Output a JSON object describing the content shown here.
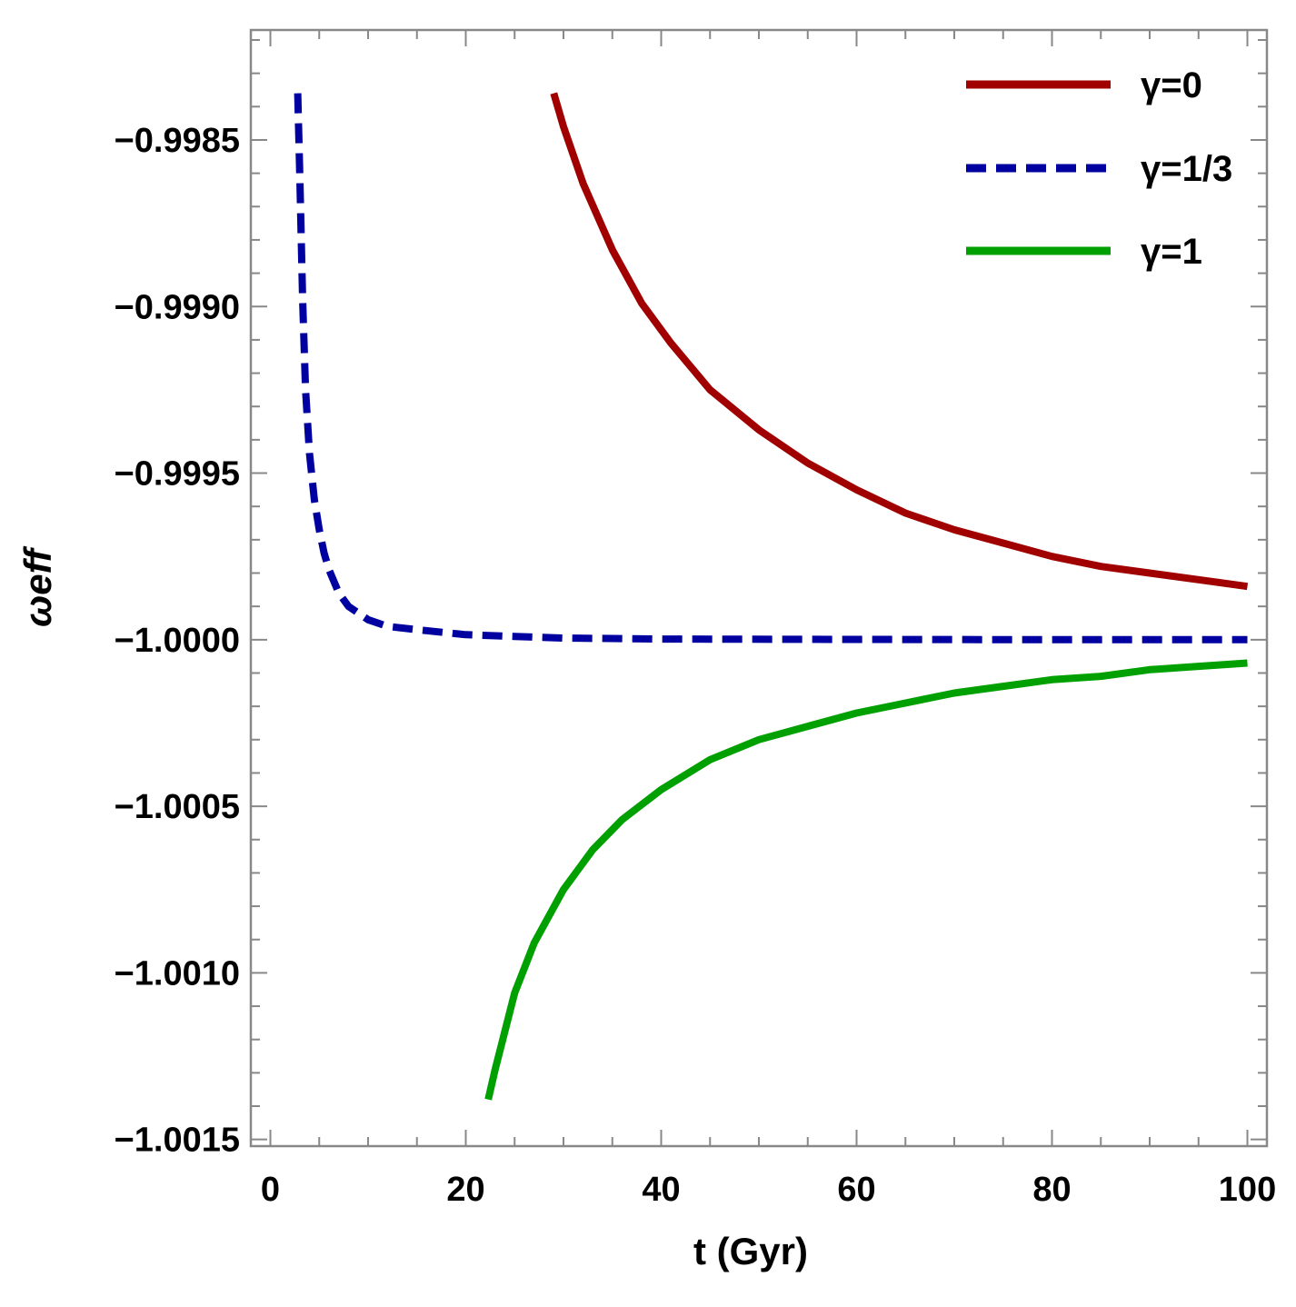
{
  "chart_data": {
    "type": "line",
    "title": "",
    "xlabel": "t (Gyr)",
    "ylabel": "ωeff",
    "xlim": [
      -2,
      102
    ],
    "ylim": [
      -1.00152,
      -0.99817
    ],
    "x_ticks": [
      0,
      20,
      40,
      60,
      80,
      100
    ],
    "x_tick_labels": [
      "0",
      "20",
      "40",
      "60",
      "80",
      "100"
    ],
    "y_ticks": [
      -0.9985,
      -0.999,
      -0.9995,
      -1.0,
      -1.0005,
      -1.001,
      -1.0015
    ],
    "y_tick_labels": [
      "−0.9985",
      "−0.9990",
      "−0.9995",
      "−1.0000",
      "−1.0005",
      "−1.0010",
      "−1.0015"
    ],
    "grid": false,
    "legend_position": "top-right",
    "series": [
      {
        "name": "γ=0",
        "color": "#a00000",
        "dash": "solid",
        "x": [
          29,
          30,
          32,
          35,
          38,
          41,
          45,
          50,
          55,
          60,
          65,
          70,
          75,
          80,
          85,
          90,
          95,
          100
        ],
        "y": [
          -0.99836,
          -0.99846,
          -0.99863,
          -0.99883,
          -0.99899,
          -0.99911,
          -0.99925,
          -0.99937,
          -0.99947,
          -0.99955,
          -0.99962,
          -0.99967,
          -0.99971,
          -0.99975,
          -0.99978,
          -0.9998,
          -0.99982,
          -0.99984
        ]
      },
      {
        "name": "γ=1/3",
        "color": "#0000a0",
        "dash": "dashed",
        "x": [
          2.8,
          3,
          3.3,
          3.6,
          4,
          4.5,
          5,
          5.5,
          6,
          7,
          8,
          9,
          10,
          12,
          15,
          20,
          25,
          30,
          40,
          60,
          80,
          100
        ],
        "y": [
          -0.99836,
          -0.9986,
          -0.99898,
          -0.99925,
          -0.99944,
          -0.99958,
          -0.99967,
          -0.99974,
          -0.99979,
          -0.99986,
          -0.9999,
          -0.99992,
          -0.99994,
          -0.99996,
          -0.99997,
          -0.999985,
          -0.99999,
          -0.999995,
          -0.999998,
          -0.999999,
          -1.0,
          -1.0
        ]
      },
      {
        "name": "γ=1",
        "color": "#00a000",
        "dash": "solid",
        "x": [
          22.3,
          23,
          25,
          27,
          30,
          33,
          36,
          40,
          45,
          50,
          55,
          60,
          65,
          70,
          75,
          80,
          85,
          90,
          95,
          100
        ],
        "y": [
          -1.00138,
          -1.00129,
          -1.00106,
          -1.00091,
          -1.00075,
          -1.00063,
          -1.00054,
          -1.00045,
          -1.00036,
          -1.0003,
          -1.00026,
          -1.00022,
          -1.00019,
          -1.00016,
          -1.00014,
          -1.00012,
          -1.00011,
          -1.00009,
          -1.00008,
          -1.00007
        ]
      }
    ]
  }
}
